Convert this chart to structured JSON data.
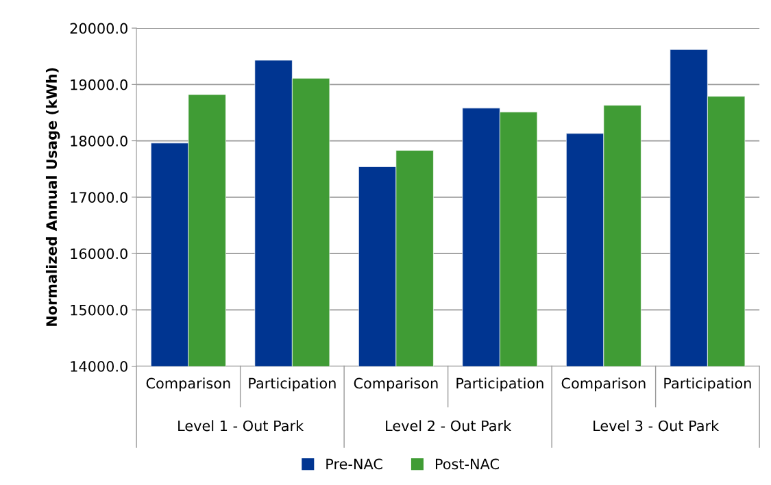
{
  "chart_data": {
    "type": "bar",
    "ylabel": "Normalized Annual Usage (kWh)",
    "categories": [
      "Comparison",
      "Participation",
      "Comparison",
      "Participation",
      "Comparison",
      "Participation"
    ],
    "annotations": [
      "Level 1 - Out Park",
      "Level 2 - Out Park",
      "Level 3 - Out Park"
    ],
    "series": [
      {
        "name": "Pre-NAC",
        "color": "#003591",
        "values": [
          17960,
          19430,
          17540,
          18580,
          18130,
          19620
        ]
      },
      {
        "name": "Post-NAC",
        "color": "#409c35",
        "values": [
          18820,
          19110,
          17830,
          18510,
          18630,
          18790
        ]
      }
    ],
    "ylim": [
      14000,
      20000
    ],
    "yticks": [
      {
        "value": 14000,
        "label": "14000.0"
      },
      {
        "value": 15000,
        "label": "15000.0"
      },
      {
        "value": 16000,
        "label": "16000.0"
      },
      {
        "value": 17000,
        "label": "17000.0"
      },
      {
        "value": 18000,
        "label": "18000.0"
      },
      {
        "value": 19000,
        "label": "19000.0"
      },
      {
        "value": 20000,
        "label": "20000.0"
      }
    ],
    "grid": "y",
    "legend": "bottom"
  }
}
